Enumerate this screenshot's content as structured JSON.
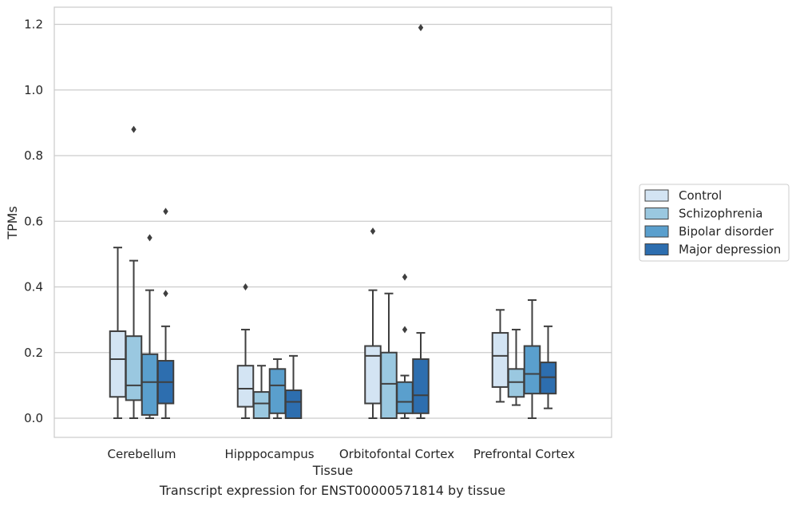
{
  "caption": "Transcript expression for ENST00000571814 by tissue",
  "chart_data": {
    "type": "box",
    "xlabel": "Tissue",
    "ylabel": "TPMs",
    "ylim": [
      -0.06,
      1.25
    ],
    "yticks": [
      0.0,
      0.2,
      0.4,
      0.6,
      0.8,
      1.0,
      1.2
    ],
    "ytick_labels": [
      "0.0",
      "0.2",
      "0.4",
      "0.6",
      "0.8",
      "1.0",
      "1.2"
    ],
    "grid": "horizontal",
    "legend_position": "right",
    "categories": [
      "Cerebellum",
      "Hipppocampus",
      "Orbitofontal Cortex",
      "Prefrontal Cortex"
    ],
    "series": [
      {
        "name": "Control",
        "color": "#d3e4f3",
        "boxes": [
          {
            "min": 0.0,
            "q1": 0.065,
            "median": 0.18,
            "q3": 0.265,
            "max": 0.52,
            "outliers": []
          },
          {
            "min": 0.0,
            "q1": 0.035,
            "median": 0.09,
            "q3": 0.16,
            "max": 0.27,
            "outliers": [
              0.4
            ]
          },
          {
            "min": 0.0,
            "q1": 0.045,
            "median": 0.19,
            "q3": 0.22,
            "max": 0.39,
            "outliers": [
              0.57
            ]
          },
          {
            "min": 0.05,
            "q1": 0.095,
            "median": 0.19,
            "q3": 0.26,
            "max": 0.33,
            "outliers": []
          }
        ]
      },
      {
        "name": "Schizophrenia",
        "color": "#9ac8e0",
        "boxes": [
          {
            "min": 0.0,
            "q1": 0.055,
            "median": 0.1,
            "q3": 0.25,
            "max": 0.48,
            "outliers": [
              0.88
            ]
          },
          {
            "min": 0.0,
            "q1": 0.0,
            "median": 0.045,
            "q3": 0.08,
            "max": 0.16,
            "outliers": []
          },
          {
            "min": 0.0,
            "q1": 0.0,
            "median": 0.105,
            "q3": 0.2,
            "max": 0.38,
            "outliers": []
          },
          {
            "min": 0.04,
            "q1": 0.065,
            "median": 0.11,
            "q3": 0.15,
            "max": 0.27,
            "outliers": []
          }
        ]
      },
      {
        "name": "Bipolar disorder",
        "color": "#5a9fcd",
        "boxes": [
          {
            "min": 0.0,
            "q1": 0.01,
            "median": 0.11,
            "q3": 0.195,
            "max": 0.39,
            "outliers": [
              0.55
            ]
          },
          {
            "min": 0.0,
            "q1": 0.015,
            "median": 0.1,
            "q3": 0.15,
            "max": 0.18,
            "outliers": []
          },
          {
            "min": 0.0,
            "q1": 0.015,
            "median": 0.05,
            "q3": 0.11,
            "max": 0.13,
            "outliers": [
              0.27,
              0.43
            ]
          },
          {
            "min": 0.0,
            "q1": 0.075,
            "median": 0.135,
            "q3": 0.22,
            "max": 0.36,
            "outliers": []
          }
        ]
      },
      {
        "name": "Major depression",
        "color": "#2d6eaf",
        "boxes": [
          {
            "min": 0.0,
            "q1": 0.045,
            "median": 0.11,
            "q3": 0.175,
            "max": 0.28,
            "outliers": [
              0.38,
              0.63
            ]
          },
          {
            "min": 0.0,
            "q1": 0.0,
            "median": 0.05,
            "q3": 0.085,
            "max": 0.19,
            "outliers": []
          },
          {
            "min": 0.0,
            "q1": 0.015,
            "median": 0.07,
            "q3": 0.18,
            "max": 0.26,
            "outliers": [
              1.19
            ]
          },
          {
            "min": 0.03,
            "q1": 0.075,
            "median": 0.125,
            "q3": 0.17,
            "max": 0.28,
            "outliers": []
          }
        ]
      }
    ]
  }
}
